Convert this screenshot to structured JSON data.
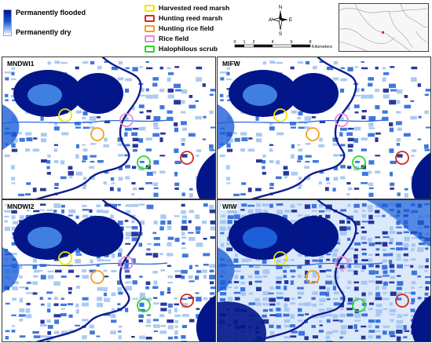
{
  "legend": {
    "ramp_high": "Permanently flooded",
    "ramp_low": "Permanently dry",
    "items": [
      {
        "label": "Harvested reed marsh",
        "color": "#f2e600"
      },
      {
        "label": "Hunting reed marsh",
        "color": "#d42a1e"
      },
      {
        "label": "Hunting rice field",
        "color": "#f0a020"
      },
      {
        "label": "Rice field",
        "color": "#e58ad6"
      },
      {
        "label": "Halophilous scrub",
        "color": "#2bd62b"
      }
    ]
  },
  "north_arrow": {
    "n": "N",
    "s": "S",
    "e": "E",
    "w": "W"
  },
  "scale": {
    "ticks": [
      "0",
      "1",
      "2",
      "4",
      "6",
      "8"
    ],
    "unit": "Kilometers"
  },
  "panels": [
    {
      "title": "MNDWI1",
      "style": "sparse"
    },
    {
      "title": "MIFW",
      "style": "sparse"
    },
    {
      "title": "MNDWI2",
      "style": "medium"
    },
    {
      "title": "WIW",
      "style": "dense"
    }
  ],
  "colors": {
    "water": "#02168a",
    "mid": "#1d5fd8",
    "light": "#9cc1ef",
    "river": "#101c8e"
  }
}
